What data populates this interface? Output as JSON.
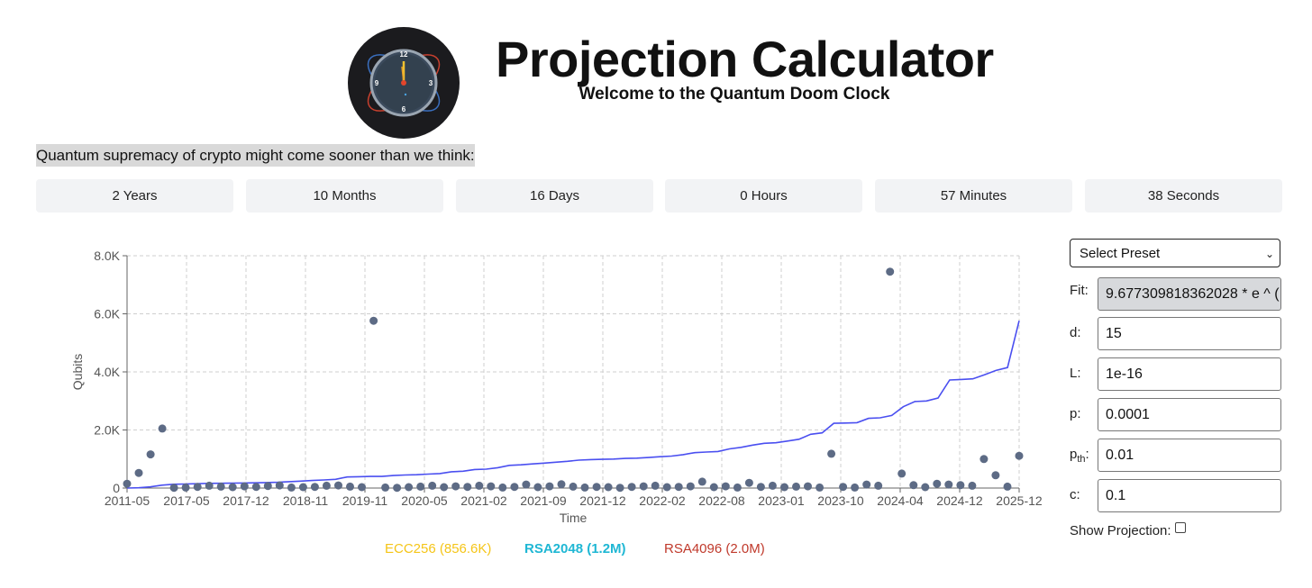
{
  "header": {
    "title": "Projection Calculator",
    "subtitle": "Welcome to the Quantum Doom Clock",
    "logo": {
      "icon": "doom-clock-icon",
      "dial_numbers": [
        "12",
        "3",
        "6",
        "9"
      ]
    }
  },
  "tagline": "Quantum supremacy of crypto might come sooner than we think:",
  "countdown": [
    "2 Years",
    "10 Months",
    "16 Days",
    "0 Hours",
    "57 Minutes",
    "38 Seconds"
  ],
  "legend": [
    {
      "label": "ECC256 (856.6K)",
      "color": "#f5c518",
      "bold": false
    },
    {
      "label": "RSA2048 (1.2M)",
      "color": "#1fb7d4",
      "bold": true
    },
    {
      "label": "RSA4096 (2.0M)",
      "color": "#c0392b",
      "bold": false
    }
  ],
  "panel": {
    "preset_label": "Select Preset",
    "fit_label": "Fit:",
    "fit_value": "9.677309818362028 * e ^ (",
    "d_label": "d:",
    "d_value": "15",
    "L_label": "L:",
    "L_value": "1e-16",
    "p_label": "p:",
    "p_value": "0.0001",
    "pth_label_main": "p",
    "pth_label_sub": "th",
    "pth_label_colon": ":",
    "pth_value": "0.01",
    "c_label": "c:",
    "c_value": "0.1",
    "show_projection_label": "Show Projection:",
    "show_projection_checked": false
  },
  "chart_data": {
    "type": "scatter",
    "xlabel": "Time",
    "ylabel": "Qubits",
    "ylim": [
      0,
      8000
    ],
    "yticks": [
      0,
      2000,
      4000,
      6000,
      8000
    ],
    "ytick_labels": [
      "0",
      "2.0K",
      "4.0K",
      "6.0K",
      "8.0K"
    ],
    "xtick_labels": [
      "2011-05",
      "2017-05",
      "2017-12",
      "2018-11",
      "2019-11",
      "2020-05",
      "2021-02",
      "2021-09",
      "2021-12",
      "2022-02",
      "2022-08",
      "2023-01",
      "2023-10",
      "2024-04",
      "2024-12",
      "2025-12"
    ],
    "grid": true,
    "series": [
      {
        "kind": "scatter",
        "color": "#5d6b85",
        "values": [
          150,
          520,
          1160,
          2050,
          10,
          20,
          40,
          80,
          50,
          30,
          60,
          40,
          70,
          90,
          20,
          30,
          40,
          80,
          90,
          50,
          30,
          5760,
          20,
          10,
          30,
          50,
          80,
          30,
          60,
          40,
          80,
          60,
          20,
          40,
          120,
          30,
          60,
          130,
          50,
          20,
          40,
          30,
          10,
          40,
          60,
          80,
          30,
          40,
          60,
          220,
          30,
          60,
          20,
          180,
          40,
          80,
          30,
          50,
          60,
          20,
          1180,
          40,
          20,
          120,
          80,
          7450,
          500,
          100,
          30,
          150,
          120,
          100,
          80,
          1000,
          440,
          50,
          1110
        ]
      },
      {
        "kind": "line",
        "color": "#4a4ff0",
        "values": [
          0,
          10,
          40,
          100,
          130,
          140,
          150,
          160,
          165,
          170,
          175,
          180,
          190,
          200,
          220,
          240,
          260,
          280,
          300,
          380,
          390,
          400,
          400,
          430,
          450,
          460,
          480,
          500,
          560,
          580,
          640,
          650,
          700,
          780,
          800,
          830,
          860,
          890,
          920,
          960,
          980,
          990,
          1000,
          1020,
          1030,
          1050,
          1080,
          1100,
          1150,
          1220,
          1240,
          1260,
          1350,
          1400,
          1480,
          1540,
          1560,
          1620,
          1680,
          1850,
          1900,
          2230,
          2240,
          2250,
          2400,
          2420,
          2500,
          2800,
          2980,
          3000,
          3100,
          3720,
          3740,
          3760,
          3900,
          4050,
          4150,
          5760
        ]
      }
    ]
  }
}
